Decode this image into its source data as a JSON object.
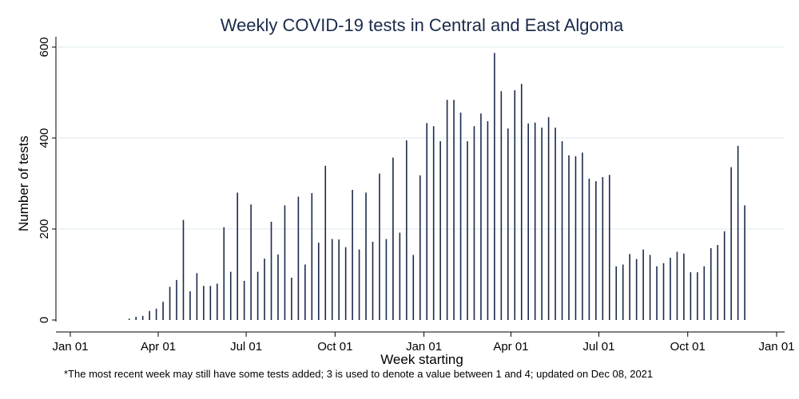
{
  "chart_data": {
    "type": "bar",
    "title": "Weekly COVID-19 tests in Central and East Algoma",
    "xlabel": "Week starting",
    "ylabel": "Number of tests",
    "ylim": [
      0,
      620
    ],
    "yticks": [
      0,
      200,
      400,
      600
    ],
    "xlim": [
      "2020-01-01",
      "2022-01-01"
    ],
    "xticks": [
      {
        "date": "2020-01-01",
        "label": "Jan 01"
      },
      {
        "date": "2020-04-01",
        "label": "Apr 01"
      },
      {
        "date": "2020-07-01",
        "label": "Jul 01"
      },
      {
        "date": "2020-10-01",
        "label": "Oct 01"
      },
      {
        "date": "2021-01-01",
        "label": "Jan 01"
      },
      {
        "date": "2021-04-01",
        "label": "Apr 01"
      },
      {
        "date": "2021-07-01",
        "label": "Jul 01"
      },
      {
        "date": "2021-10-01",
        "label": "Oct 01"
      },
      {
        "date": "2022-01-01",
        "label": "Jan 01"
      }
    ],
    "grid": true,
    "bar_color": "#1a2a4a",
    "grid_color": "#dde8ee",
    "series": [
      {
        "x": [
          "2020-03-02",
          "2020-03-09",
          "2020-03-16",
          "2020-03-23",
          "2020-03-30",
          "2020-04-06",
          "2020-04-13",
          "2020-04-20",
          "2020-04-27",
          "2020-05-04",
          "2020-05-11",
          "2020-05-18",
          "2020-05-25",
          "2020-06-01",
          "2020-06-08",
          "2020-06-15",
          "2020-06-22",
          "2020-06-29",
          "2020-07-06",
          "2020-07-13",
          "2020-07-20",
          "2020-07-27",
          "2020-08-03",
          "2020-08-10",
          "2020-08-17",
          "2020-08-24",
          "2020-08-31",
          "2020-09-07",
          "2020-09-14",
          "2020-09-21",
          "2020-09-28",
          "2020-10-05",
          "2020-10-12",
          "2020-10-19",
          "2020-10-26",
          "2020-11-02",
          "2020-11-09",
          "2020-11-16",
          "2020-11-23",
          "2020-11-30",
          "2020-12-07",
          "2020-12-14",
          "2020-12-21",
          "2020-12-28",
          "2021-01-04",
          "2021-01-11",
          "2021-01-18",
          "2021-01-25",
          "2021-02-01",
          "2021-02-08",
          "2021-02-15",
          "2021-02-22",
          "2021-03-01",
          "2021-03-08",
          "2021-03-15",
          "2021-03-22",
          "2021-03-29",
          "2021-04-05",
          "2021-04-12",
          "2021-04-19",
          "2021-04-26",
          "2021-05-03",
          "2021-05-10",
          "2021-05-17",
          "2021-05-24",
          "2021-05-31",
          "2021-06-07",
          "2021-06-14",
          "2021-06-21",
          "2021-06-28",
          "2021-07-05",
          "2021-07-12",
          "2021-07-19",
          "2021-07-26",
          "2021-08-02",
          "2021-08-09",
          "2021-08-16",
          "2021-08-23",
          "2021-08-30",
          "2021-09-06",
          "2021-09-13",
          "2021-09-20",
          "2021-09-27",
          "2021-10-04",
          "2021-10-11",
          "2021-10-18",
          "2021-10-25",
          "2021-11-01",
          "2021-11-08",
          "2021-11-15",
          "2021-11-22",
          "2021-11-29"
        ],
        "values": [
          3,
          7,
          9,
          20,
          25,
          40,
          73,
          88,
          220,
          63,
          103,
          75,
          75,
          80,
          204,
          106,
          280,
          86,
          254,
          106,
          135,
          216,
          144,
          252,
          93,
          271,
          122,
          279,
          170,
          339,
          178,
          177,
          160,
          286,
          155,
          280,
          172,
          322,
          178,
          357,
          192,
          395,
          143,
          318,
          433,
          426,
          393,
          484,
          484,
          456,
          393,
          426,
          454,
          437,
          587,
          503,
          421,
          505,
          519,
          432,
          434,
          423,
          446,
          423,
          393,
          362,
          360,
          368,
          311,
          305,
          314,
          319,
          118,
          122,
          145,
          134,
          155,
          143,
          118,
          125,
          137,
          150,
          146,
          105,
          105,
          118,
          158,
          165,
          195,
          336,
          383,
          252
        ]
      }
    ]
  },
  "footnote": "*The most recent week may still have some tests added; 3 is used to denote a value between 1 and 4; updated on  Dec 08, 2021"
}
